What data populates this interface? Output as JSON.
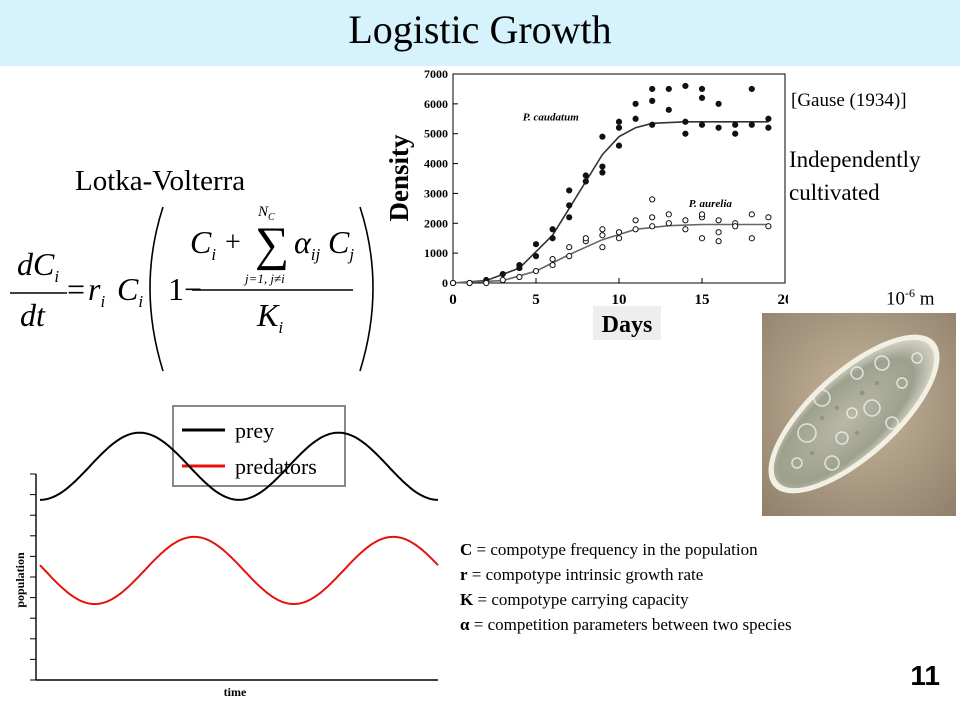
{
  "slide": {
    "title": "Logistic Growth",
    "equation_heading": "Lotka-Volterra",
    "citation": "[Gause (1934)]",
    "cultivation_note_line1": "Independently",
    "cultivation_note_line2": "cultivated",
    "scale_base": "10",
    "scale_exponent": "-6",
    "scale_unit": " m",
    "slide_number": "11"
  },
  "equation": {
    "lhs_num": "dC",
    "lhs_num_sub": "i",
    "lhs_den": "dt",
    "equals": "=",
    "r": "r",
    "r_sub": "i",
    "C": "C",
    "C_sub": "i",
    "one_minus": "1−",
    "sum_upper": "N",
    "sum_upper_sub": "C",
    "sum_lower": "j=1, j≠i",
    "num_C": "C",
    "num_C_sub": "i",
    "plus": "+",
    "alpha": "α",
    "alpha_sub": "ij",
    "num_Cj": "C",
    "num_Cj_sub": "j",
    "den_K": "K",
    "den_K_sub": "i"
  },
  "definitions": [
    {
      "symbol": "C",
      "text": " = compotype frequency in the population"
    },
    {
      "symbol": "r",
      "text": " = compotype intrinsic growth rate"
    },
    {
      "symbol": "K",
      "text": " = compotype carrying capacity"
    },
    {
      "symbol": "α",
      "text": " = competition parameters between two species"
    }
  ],
  "colors": {
    "title_band": "#d6f2fd",
    "prey": "#000000",
    "predators": "#e8120c",
    "photo_bg": "#b8a48a"
  },
  "chart_data": [
    {
      "type": "scatter",
      "ylabel": "Density",
      "xlabel": "Days",
      "xlim": [
        0,
        20
      ],
      "ylim": [
        0,
        7000
      ],
      "x_ticks": [
        "0",
        "5",
        "10",
        "15",
        "20"
      ],
      "y_ticks": [
        "0",
        "1000",
        "2000",
        "3000",
        "4000",
        "5000",
        "6000",
        "7000"
      ],
      "series": [
        {
          "name": "P. caudatum",
          "marker": "filled",
          "points": [
            [
              0,
              0
            ],
            [
              1,
              0
            ],
            [
              2,
              100
            ],
            [
              3,
              300
            ],
            [
              4,
              500
            ],
            [
              4,
              600
            ],
            [
              5,
              900
            ],
            [
              5,
              1300
            ],
            [
              6,
              1500
            ],
            [
              6,
              1800
            ],
            [
              7,
              2200
            ],
            [
              7,
              2600
            ],
            [
              7,
              3100
            ],
            [
              8,
              3400
            ],
            [
              8,
              3600
            ],
            [
              9,
              3700
            ],
            [
              9,
              3900
            ],
            [
              9,
              4900
            ],
            [
              10,
              4600
            ],
            [
              10,
              5200
            ],
            [
              10,
              5400
            ],
            [
              11,
              5500
            ],
            [
              11,
              6000
            ],
            [
              12,
              5300
            ],
            [
              12,
              6500
            ],
            [
              12,
              6100
            ],
            [
              13,
              5800
            ],
            [
              13,
              6500
            ],
            [
              14,
              5400
            ],
            [
              14,
              5000
            ],
            [
              14,
              6600
            ],
            [
              15,
              5300
            ],
            [
              15,
              6200
            ],
            [
              15,
              6500
            ],
            [
              16,
              5200
            ],
            [
              16,
              6000
            ],
            [
              17,
              5000
            ],
            [
              17,
              5300
            ],
            [
              18,
              6500
            ],
            [
              18,
              5300
            ],
            [
              19,
              5200
            ],
            [
              19,
              5500
            ]
          ],
          "fit": [
            [
              0,
              0
            ],
            [
              2,
              80
            ],
            [
              4,
              500
            ],
            [
              6,
              1600
            ],
            [
              7,
              2500
            ],
            [
              8,
              3400
            ],
            [
              9,
              4300
            ],
            [
              10,
              4900
            ],
            [
              11,
              5200
            ],
            [
              12,
              5350
            ],
            [
              14,
              5400
            ],
            [
              16,
              5400
            ],
            [
              19,
              5400
            ]
          ]
        },
        {
          "name": "P. aurelia",
          "marker": "open",
          "points": [
            [
              0,
              0
            ],
            [
              1,
              0
            ],
            [
              2,
              0
            ],
            [
              3,
              100
            ],
            [
              4,
              200
            ],
            [
              5,
              400
            ],
            [
              6,
              600
            ],
            [
              6,
              800
            ],
            [
              7,
              900
            ],
            [
              7,
              1200
            ],
            [
              8,
              1400
            ],
            [
              8,
              1500
            ],
            [
              9,
              1200
            ],
            [
              9,
              1600
            ],
            [
              9,
              1800
            ],
            [
              10,
              1700
            ],
            [
              10,
              1500
            ],
            [
              11,
              1800
            ],
            [
              11,
              2100
            ],
            [
              12,
              1900
            ],
            [
              12,
              2800
            ],
            [
              12,
              2200
            ],
            [
              13,
              2000
            ],
            [
              13,
              2300
            ],
            [
              14,
              2100
            ],
            [
              14,
              1800
            ],
            [
              15,
              2200
            ],
            [
              15,
              1500
            ],
            [
              15,
              2300
            ],
            [
              16,
              1400
            ],
            [
              16,
              1700
            ],
            [
              16,
              2100
            ],
            [
              17,
              2000
            ],
            [
              17,
              1900
            ],
            [
              18,
              2300
            ],
            [
              18,
              1500
            ],
            [
              19,
              2200
            ],
            [
              19,
              1900
            ]
          ],
          "fit": [
            [
              0,
              0
            ],
            [
              3,
              80
            ],
            [
              5,
              400
            ],
            [
              7,
              950
            ],
            [
              9,
              1450
            ],
            [
              11,
              1800
            ],
            [
              13,
              1920
            ],
            [
              15,
              1960
            ],
            [
              19,
              1960
            ]
          ]
        }
      ]
    },
    {
      "type": "line",
      "xlabel": "time",
      "ylabel": "population",
      "legend": "top",
      "grid": false,
      "series": [
        {
          "name": "prey",
          "color": "#000000",
          "period": 8.0,
          "phase": 0.0,
          "mean": 1.0,
          "amplitude": 0.5
        },
        {
          "name": "predators",
          "color": "#e8120c",
          "period": 8.0,
          "phase": 2.2,
          "mean": -0.55,
          "amplitude": 0.5
        }
      ]
    }
  ]
}
